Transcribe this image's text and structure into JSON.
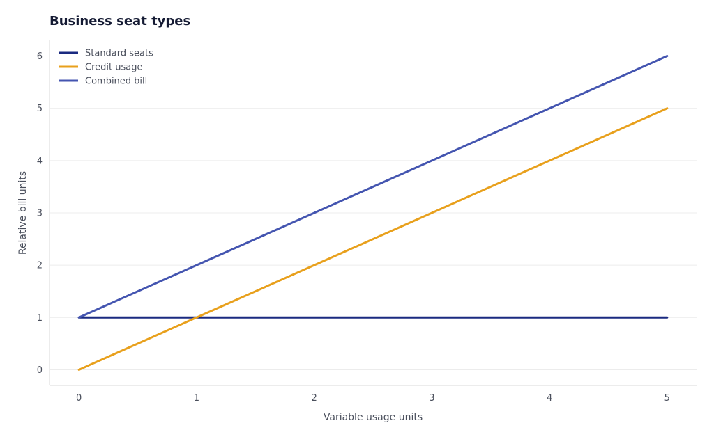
{
  "chart_data": {
    "type": "line",
    "title": "Business seat types",
    "xlabel": "Variable usage units",
    "ylabel": "Relative bill units",
    "x": [
      0,
      1,
      2,
      3,
      4,
      5
    ],
    "xlim": [
      -0.25,
      5.25
    ],
    "ylim": [
      -0.3,
      6.3
    ],
    "xticks": [
      "0",
      "1",
      "2",
      "3",
      "4",
      "5"
    ],
    "yticks": [
      "0",
      "1",
      "2",
      "3",
      "4",
      "5",
      "6"
    ],
    "grid": "horizontal",
    "legend_position": "top-left",
    "series": [
      {
        "name": "Standard seats",
        "color": "#1a2a80",
        "values": [
          1,
          1,
          1,
          1,
          1,
          1
        ]
      },
      {
        "name": "Credit usage",
        "color": "#e8a01c",
        "values": [
          0,
          1,
          2,
          3,
          4,
          5
        ]
      },
      {
        "name": "Combined bill",
        "color": "#4455b0",
        "values": [
          1,
          2,
          3,
          4,
          5,
          6
        ]
      }
    ]
  }
}
